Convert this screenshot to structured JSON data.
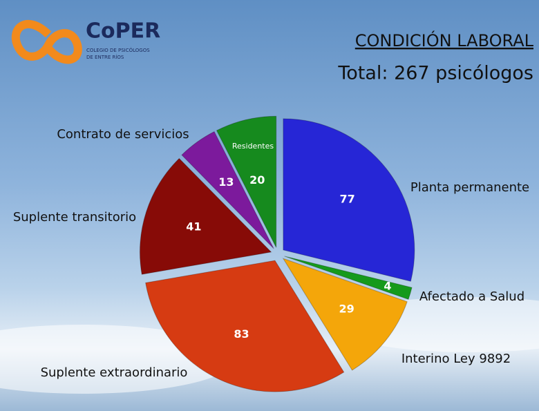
{
  "logo": {
    "name": "CoPER",
    "lines": [
      "COLEGIO DE PSICÓLOGOS",
      "DE ENTRE RÍOS"
    ]
  },
  "chart_data": {
    "type": "pie",
    "title": "CONDICIÓN LABORAL",
    "subtitle": "Total: 267 psicólogos",
    "categories": [
      "Planta permanente",
      "Afectado a Salud",
      "Interino Ley 9892",
      "Suplente extraordinario",
      "Suplente transitorio",
      "Contrato de servicios",
      "Residentes"
    ],
    "values": [
      77,
      4,
      29,
      83,
      41,
      13,
      20
    ],
    "colors": [
      "#2626d6",
      "#159a1c",
      "#f4a60a",
      "#d63b12",
      "#870b07",
      "#7c1a9c",
      "#168a1e"
    ]
  }
}
